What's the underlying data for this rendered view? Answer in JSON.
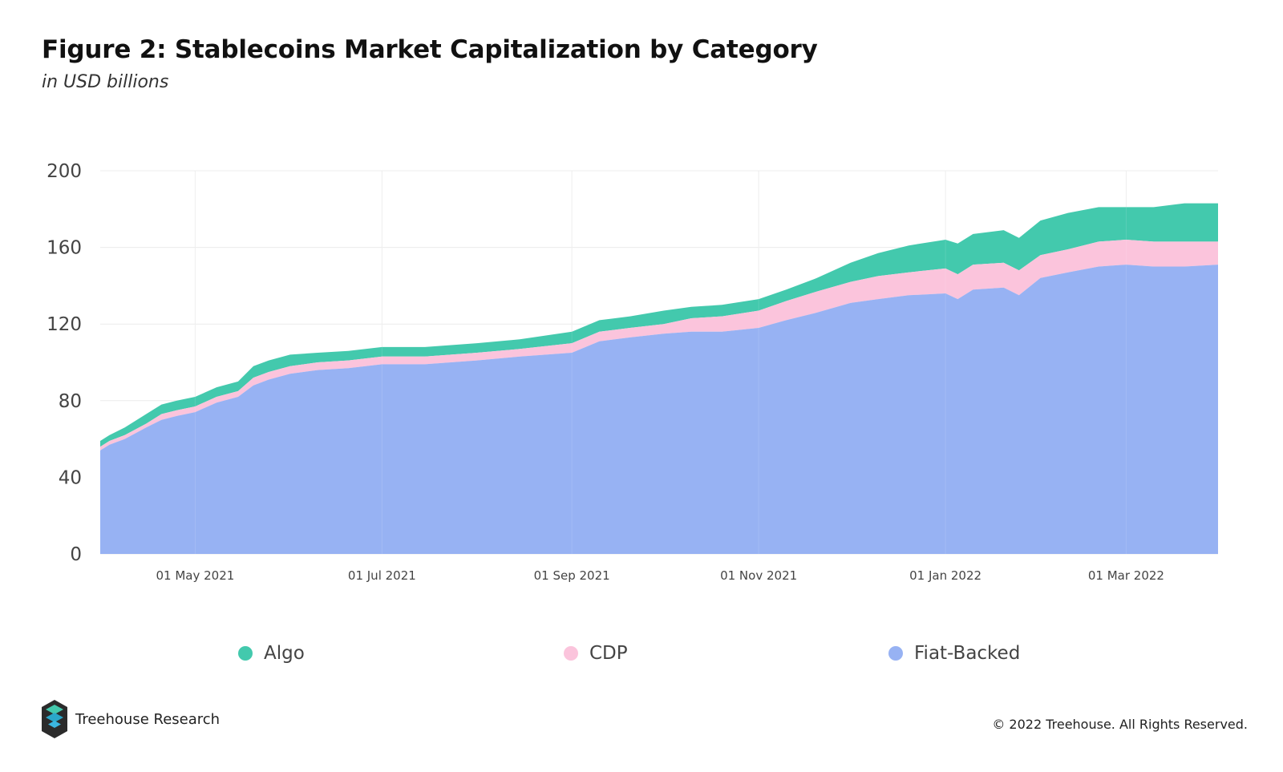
{
  "header": {
    "title": "Figure 2: Stablecoins Market Capitalization by Category",
    "subtitle": "in USD billions"
  },
  "colors": {
    "algo": "#43c9ad",
    "cdp": "#fbc4dc",
    "fiat": "#97b2f3",
    "grid": "#ececec",
    "axis_text": "#444444"
  },
  "footer": {
    "brand": "Treehouse Research",
    "copyright": "© 2022 Treehouse. All Rights Reserved."
  },
  "chart_data": {
    "type": "area",
    "stacked": true,
    "title": "Figure 2: Stablecoins Market Capitalization by Category",
    "subtitle": "in USD billions",
    "xlabel": "",
    "ylabel": "",
    "ylim": [
      0,
      200
    ],
    "yticks": [
      0,
      40,
      80,
      120,
      160,
      200
    ],
    "xlim": [
      "2021-03-31",
      "2022-03-31"
    ],
    "xticks": [
      {
        "date": "2021-05-01",
        "label": "01 May 2021"
      },
      {
        "date": "2021-07-01",
        "label": "01 Jul 2021"
      },
      {
        "date": "2021-09-01",
        "label": "01 Sep 2021"
      },
      {
        "date": "2021-11-01",
        "label": "01 Nov 2021"
      },
      {
        "date": "2022-01-01",
        "label": "01 Jan 2022"
      },
      {
        "date": "2022-03-01",
        "label": "01 Mar 2022"
      }
    ],
    "grid": true,
    "legend_position": "bottom",
    "x": [
      "2021-03-31",
      "2021-04-03",
      "2021-04-08",
      "2021-04-15",
      "2021-04-20",
      "2021-04-25",
      "2021-05-01",
      "2021-05-08",
      "2021-05-15",
      "2021-05-20",
      "2021-05-25",
      "2021-06-01",
      "2021-06-10",
      "2021-06-20",
      "2021-07-01",
      "2021-07-15",
      "2021-08-01",
      "2021-08-15",
      "2021-09-01",
      "2021-09-10",
      "2021-09-20",
      "2021-10-01",
      "2021-10-10",
      "2021-10-20",
      "2021-11-01",
      "2021-11-10",
      "2021-11-20",
      "2021-12-01",
      "2021-12-10",
      "2021-12-20",
      "2022-01-01",
      "2022-01-05",
      "2022-01-10",
      "2022-01-20",
      "2022-01-25",
      "2022-02-01",
      "2022-02-10",
      "2022-02-20",
      "2022-03-01",
      "2022-03-10",
      "2022-03-20",
      "2022-03-31"
    ],
    "series": [
      {
        "name": "Fiat-Backed",
        "values": [
          54,
          57,
          60,
          66,
          70,
          72,
          74,
          79,
          82,
          88,
          91,
          94,
          96,
          97,
          99,
          99,
          101,
          103,
          105,
          111,
          113,
          115,
          116,
          116,
          118,
          122,
          126,
          131,
          133,
          135,
          136,
          133,
          138,
          139,
          135,
          144,
          147,
          150,
          151,
          150,
          150,
          151
        ]
      },
      {
        "name": "CDP",
        "values": [
          2,
          2,
          2,
          2,
          3,
          3,
          3,
          3,
          3,
          4,
          4,
          4,
          4,
          4,
          4,
          4,
          4,
          4,
          5,
          5,
          5,
          5,
          7,
          8,
          9,
          10,
          11,
          11,
          12,
          12,
          13,
          13,
          13,
          13,
          13,
          12,
          12,
          13,
          13,
          13,
          13,
          12
        ]
      },
      {
        "name": "Algo",
        "values": [
          3,
          3,
          4,
          5,
          5,
          5,
          5,
          5,
          5,
          6,
          6,
          6,
          5,
          5,
          5,
          5,
          5,
          5,
          6,
          6,
          6,
          7,
          6,
          6,
          6,
          6,
          7,
          10,
          12,
          14,
          15,
          16,
          16,
          17,
          17,
          18,
          19,
          18,
          17,
          18,
          20,
          20
        ]
      }
    ]
  }
}
